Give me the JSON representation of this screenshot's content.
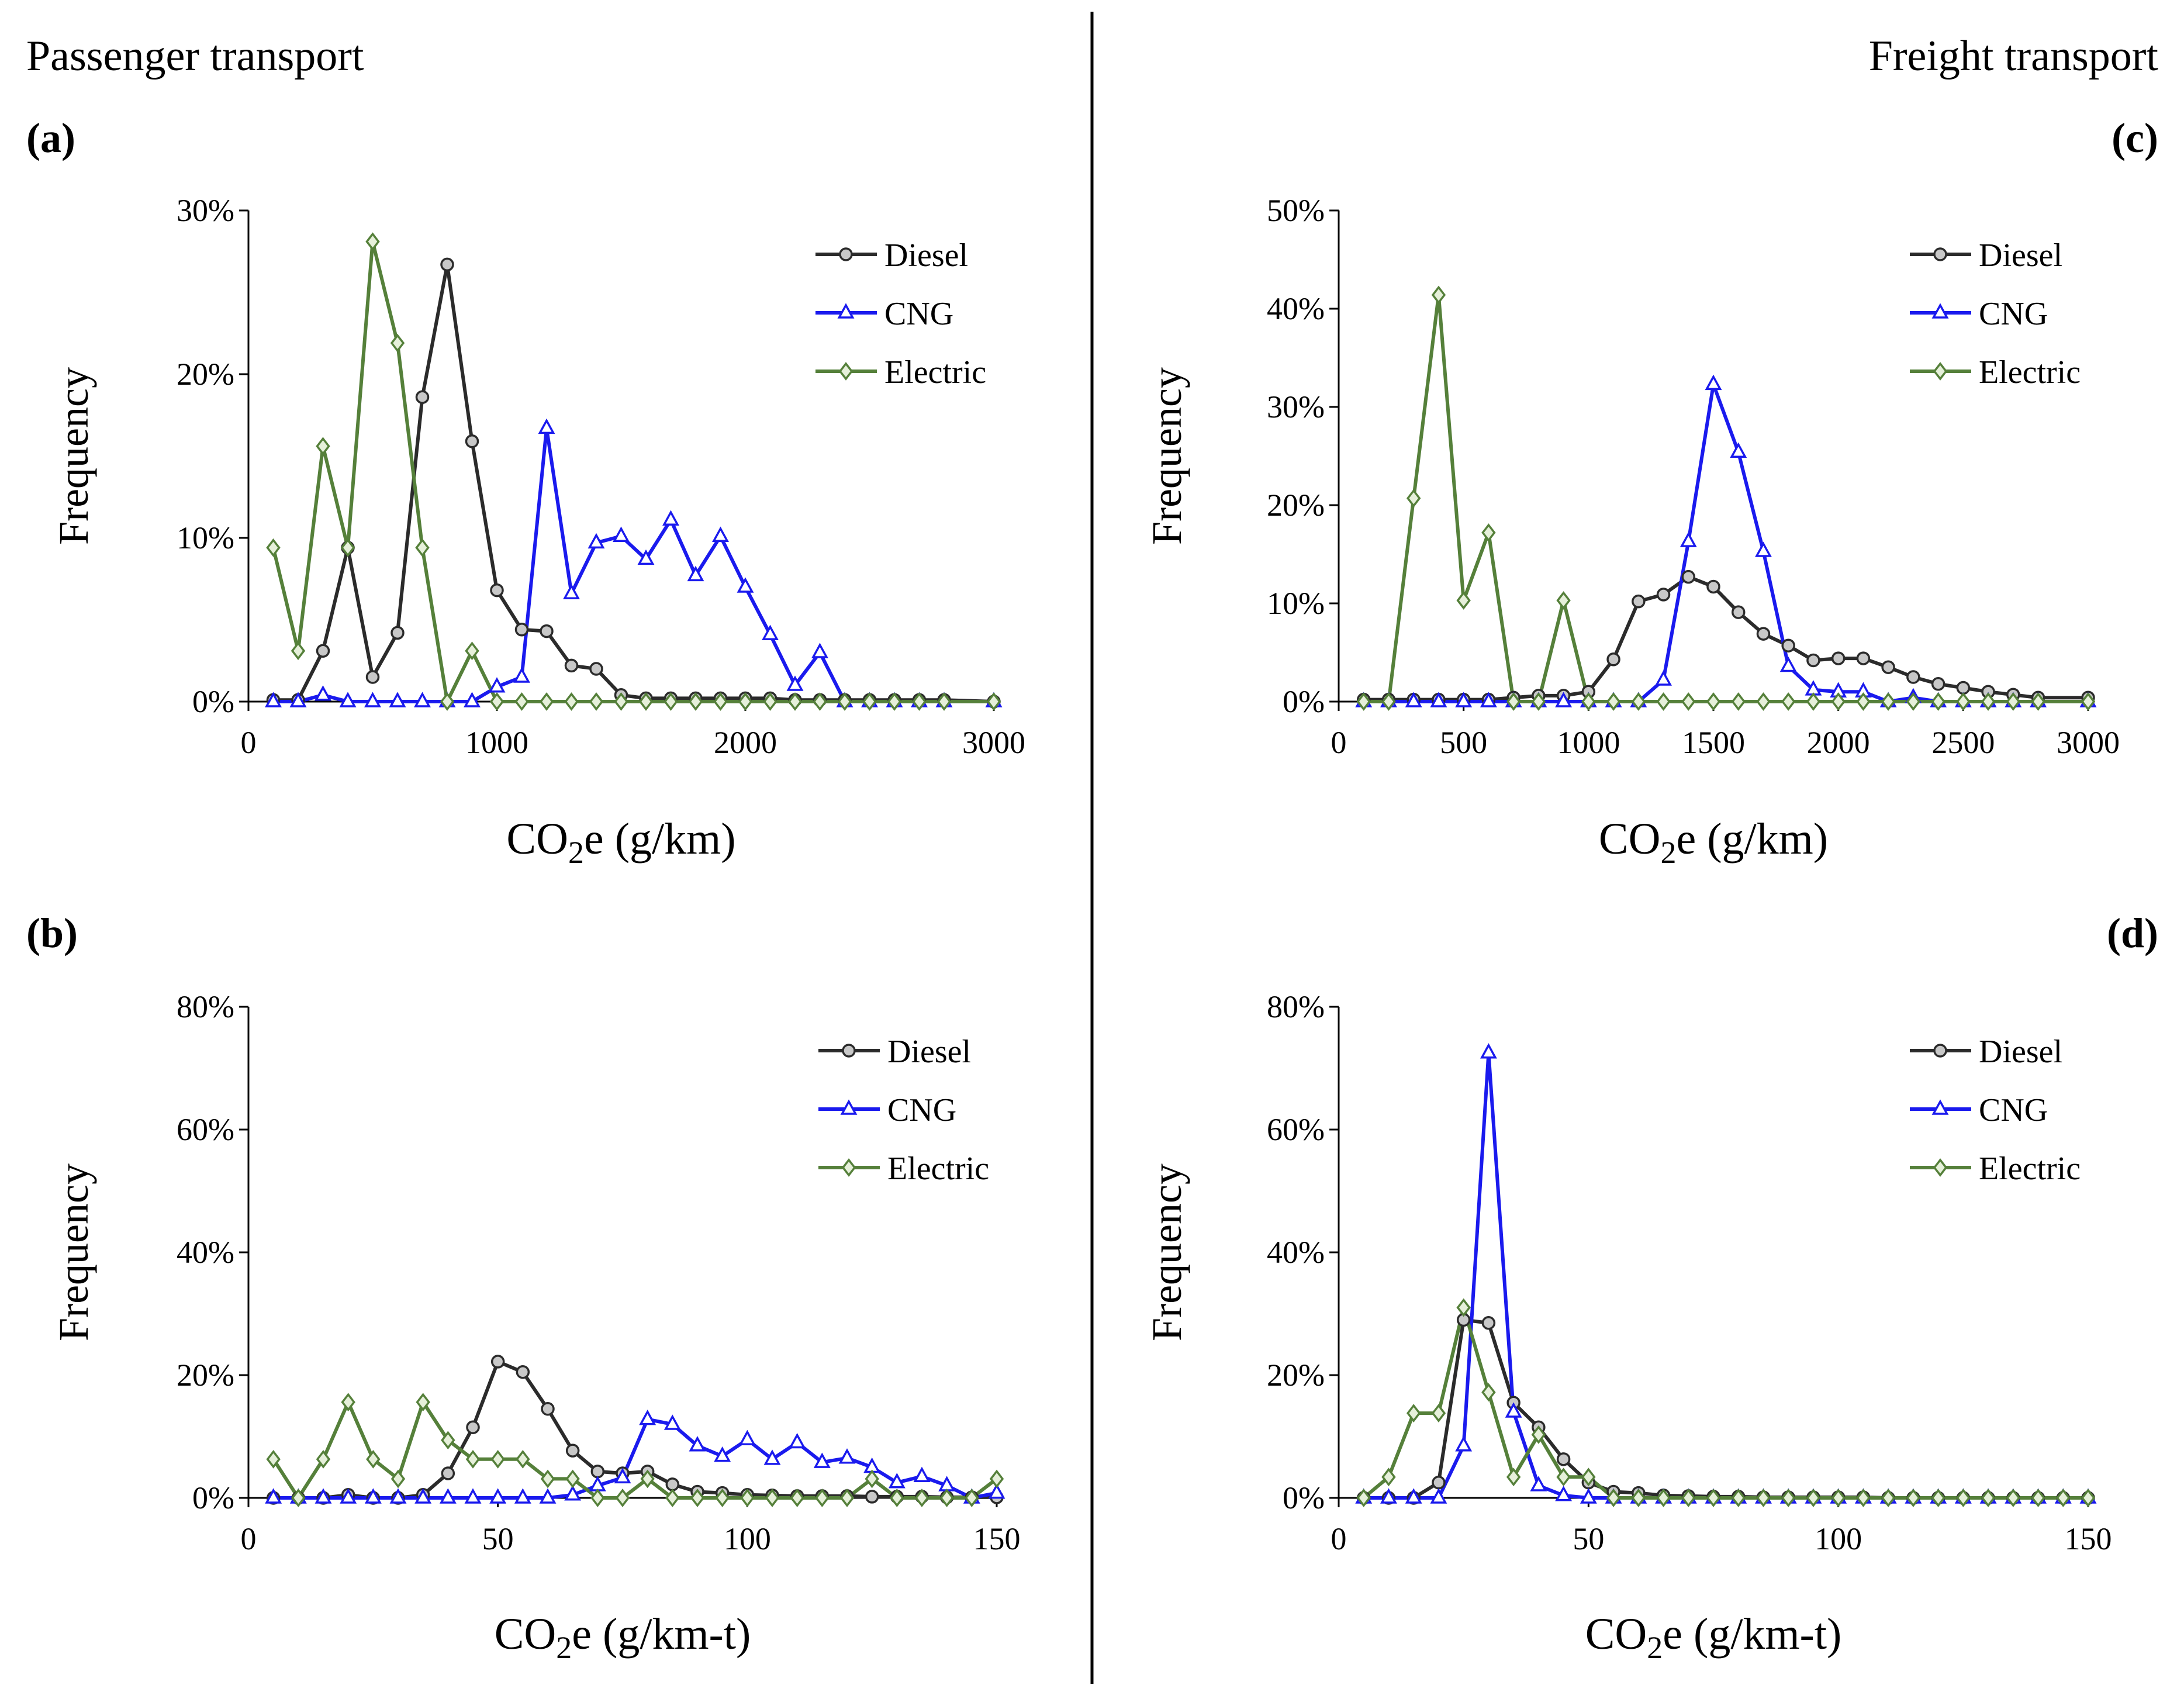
{
  "figure": {
    "sections": {
      "left": "Passenger transport",
      "right": "Freight transport"
    }
  },
  "colors": {
    "diesel": "#2b2b2b",
    "cng": "#1a1aee",
    "electric": "#55803a",
    "diesel_marker": "#c8c8c8",
    "electric_marker": "#e6f0da",
    "cng_marker": "#ffffff"
  },
  "chart_data": [
    {
      "id": "a",
      "panel_label": "(a)",
      "type": "line",
      "title": "Passenger transport",
      "xlabel_main": "CO",
      "xlabel_sub": "2",
      "xlabel_rest": "e (g/km)",
      "ylabel": "Frequency",
      "xlim": [
        0,
        3000
      ],
      "ylim": [
        0,
        0.3
      ],
      "xticks": [
        0,
        1000,
        2000,
        3000
      ],
      "xtick_labels": [
        "0",
        "1000",
        "2000",
        "3000"
      ],
      "yticks": [
        0,
        0.1,
        0.2,
        0.3
      ],
      "ytick_labels": [
        "0%",
        "10%",
        "20%",
        "30%"
      ],
      "legend": [
        "Diesel",
        "CNG",
        "Electric"
      ],
      "legend_position": "top-right",
      "series": [
        {
          "name": "Diesel",
          "x": [
            100,
            200,
            300,
            400,
            500,
            600,
            700,
            800,
            900,
            1000,
            1100,
            1200,
            1300,
            1400,
            1500,
            1600,
            1700,
            1800,
            1900,
            2000,
            2100,
            2200,
            2300,
            2400,
            2500,
            2600,
            2700,
            2800,
            3000
          ],
          "values": [
            0.001,
            0.001,
            0.031,
            0.094,
            0.015,
            0.042,
            0.186,
            0.267,
            0.159,
            0.068,
            0.044,
            0.043,
            0.022,
            0.02,
            0.004,
            0.002,
            0.002,
            0.002,
            0.002,
            0.002,
            0.002,
            0.001,
            0.001,
            0.001,
            0.001,
            0.001,
            0.001,
            0.001,
            0.0
          ]
        },
        {
          "name": "CNG",
          "x": [
            100,
            200,
            300,
            400,
            500,
            600,
            700,
            800,
            900,
            1000,
            1100,
            1200,
            1300,
            1400,
            1500,
            1600,
            1700,
            1800,
            1900,
            2000,
            2100,
            2200,
            2300,
            2400,
            2500,
            2600,
            2700,
            2800,
            3000
          ],
          "values": [
            0.0,
            0.0,
            0.004,
            0.0,
            0.0,
            0.0,
            0.0,
            0.0,
            0.0,
            0.009,
            0.015,
            0.167,
            0.066,
            0.097,
            0.101,
            0.087,
            0.111,
            0.077,
            0.101,
            0.07,
            0.041,
            0.01,
            0.03,
            0.0,
            0.0,
            0.0,
            0.0,
            0.0,
            0.0
          ]
        },
        {
          "name": "Electric",
          "x": [
            100,
            200,
            300,
            400,
            500,
            600,
            700,
            800,
            900,
            1000,
            1100,
            1200,
            1300,
            1400,
            1500,
            1600,
            1700,
            1800,
            1900,
            2000,
            2100,
            2200,
            2300,
            2400,
            2500,
            2600,
            2700,
            2800,
            3000
          ],
          "values": [
            0.094,
            0.031,
            0.156,
            0.094,
            0.281,
            0.219,
            0.094,
            0.0,
            0.031,
            0.0,
            0.0,
            0.0,
            0.0,
            0.0,
            0.0,
            0.0,
            0.0,
            0.0,
            0.0,
            0.0,
            0.0,
            0.0,
            0.0,
            0.0,
            0.0,
            0.0,
            0.0,
            0.0,
            0.0
          ]
        }
      ]
    },
    {
      "id": "c",
      "panel_label": "(c)",
      "type": "line",
      "title": "Freight transport",
      "xlabel_main": "CO",
      "xlabel_sub": "2",
      "xlabel_rest": "e (g/km)",
      "ylabel": "Frequency",
      "xlim": [
        0,
        3000
      ],
      "ylim": [
        0,
        0.5
      ],
      "xticks": [
        0,
        500,
        1000,
        1500,
        2000,
        2500,
        3000
      ],
      "xtick_labels": [
        "0",
        "500",
        "1000",
        "1500",
        "2000",
        "2500",
        "3000"
      ],
      "yticks": [
        0,
        0.1,
        0.2,
        0.3,
        0.4,
        0.5
      ],
      "ytick_labels": [
        "0%",
        "10%",
        "20%",
        "30%",
        "40%",
        "50%"
      ],
      "legend": [
        "Diesel",
        "CNG",
        "Electric"
      ],
      "legend_position": "top-right",
      "series": [
        {
          "name": "Diesel",
          "x": [
            100,
            200,
            300,
            400,
            500,
            600,
            700,
            800,
            900,
            1000,
            1100,
            1200,
            1300,
            1400,
            1500,
            1600,
            1700,
            1800,
            1900,
            2000,
            2100,
            2200,
            2300,
            2400,
            2500,
            2600,
            2700,
            2800,
            3000
          ],
          "values": [
            0.002,
            0.002,
            0.002,
            0.002,
            0.002,
            0.002,
            0.004,
            0.006,
            0.006,
            0.01,
            0.043,
            0.102,
            0.109,
            0.127,
            0.117,
            0.091,
            0.069,
            0.057,
            0.042,
            0.044,
            0.044,
            0.035,
            0.025,
            0.018,
            0.014,
            0.01,
            0.007,
            0.004,
            0.004
          ]
        },
        {
          "name": "CNG",
          "x": [
            100,
            200,
            300,
            400,
            500,
            600,
            700,
            800,
            900,
            1000,
            1100,
            1200,
            1300,
            1400,
            1500,
            1600,
            1700,
            1800,
            1900,
            2000,
            2100,
            2200,
            2300,
            2400,
            2500,
            2600,
            2700,
            2800,
            3000
          ],
          "values": [
            0.0,
            0.0,
            0.0,
            0.0,
            0.0,
            0.0,
            0.0,
            0.0,
            0.0,
            0.0,
            0.0,
            0.0,
            0.022,
            0.163,
            0.323,
            0.254,
            0.153,
            0.036,
            0.012,
            0.01,
            0.01,
            0.0,
            0.004,
            0.0,
            0.0,
            0.0,
            0.0,
            0.0,
            0.0
          ]
        },
        {
          "name": "Electric",
          "x": [
            100,
            200,
            300,
            400,
            500,
            600,
            700,
            800,
            900,
            1000,
            1100,
            1200,
            1300,
            1400,
            1500,
            1600,
            1700,
            1800,
            1900,
            2000,
            2100,
            2200,
            2300,
            2400,
            2500,
            2600,
            2700,
            2800,
            3000
          ],
          "values": [
            0.0,
            0.0,
            0.207,
            0.414,
            0.103,
            0.172,
            0.0,
            0.0,
            0.103,
            0.0,
            0.0,
            0.0,
            0.0,
            0.0,
            0.0,
            0.0,
            0.0,
            0.0,
            0.0,
            0.0,
            0.0,
            0.0,
            0.0,
            0.0,
            0.0,
            0.0,
            0.0,
            0.0,
            0.0
          ]
        }
      ]
    },
    {
      "id": "b",
      "panel_label": "(b)",
      "type": "line",
      "title": "Passenger transport",
      "xlabel_main": "CO",
      "xlabel_sub": "2",
      "xlabel_rest": "e (g/km-t)",
      "ylabel": "Frequency",
      "xlim": [
        0,
        150
      ],
      "ylim": [
        0,
        0.8
      ],
      "xticks": [
        0,
        50,
        100,
        150
      ],
      "xtick_labels": [
        "0",
        "50",
        "100",
        "150"
      ],
      "yticks": [
        0,
        0.2,
        0.4,
        0.6,
        0.8
      ],
      "ytick_labels": [
        "0%",
        "20%",
        "40%",
        "60%",
        "80%"
      ],
      "legend": [
        "Diesel",
        "CNG",
        "Electric"
      ],
      "legend_position": "top-right",
      "series": [
        {
          "name": "Diesel",
          "x": [
            5,
            10,
            15,
            20,
            25,
            30,
            35,
            40,
            45,
            50,
            55,
            60,
            65,
            70,
            75,
            80,
            85,
            90,
            95,
            100,
            105,
            110,
            115,
            120,
            125,
            130,
            135,
            140,
            145,
            150
          ],
          "values": [
            0.0,
            0.0,
            0.0,
            0.005,
            0.0,
            0.0,
            0.005,
            0.04,
            0.115,
            0.222,
            0.205,
            0.145,
            0.077,
            0.043,
            0.04,
            0.043,
            0.022,
            0.01,
            0.008,
            0.005,
            0.004,
            0.003,
            0.003,
            0.003,
            0.002,
            0.002,
            0.002,
            0.001,
            0.001,
            0.001
          ]
        },
        {
          "name": "CNG",
          "x": [
            5,
            10,
            15,
            20,
            25,
            30,
            35,
            40,
            45,
            50,
            55,
            60,
            65,
            70,
            75,
            80,
            85,
            90,
            95,
            100,
            105,
            110,
            115,
            120,
            125,
            130,
            135,
            140,
            145,
            150
          ],
          "values": [
            0.0,
            0.0,
            0.0,
            0.0,
            0.0,
            0.0,
            0.0,
            0.0,
            0.0,
            0.0,
            0.0,
            0.0,
            0.005,
            0.02,
            0.033,
            0.128,
            0.12,
            0.085,
            0.068,
            0.095,
            0.063,
            0.09,
            0.058,
            0.065,
            0.05,
            0.025,
            0.035,
            0.02,
            0.0,
            0.008
          ]
        },
        {
          "name": "Electric",
          "x": [
            5,
            10,
            15,
            20,
            25,
            30,
            35,
            40,
            45,
            50,
            55,
            60,
            65,
            70,
            75,
            80,
            85,
            90,
            95,
            100,
            105,
            110,
            115,
            120,
            125,
            130,
            135,
            140,
            145,
            150
          ],
          "values": [
            0.063,
            0.0,
            0.063,
            0.156,
            0.063,
            0.031,
            0.156,
            0.094,
            0.063,
            0.063,
            0.063,
            0.031,
            0.031,
            0.0,
            0.0,
            0.031,
            0.0,
            0.0,
            0.0,
            0.0,
            0.0,
            0.0,
            0.0,
            0.0,
            0.031,
            0.0,
            0.0,
            0.0,
            0.0,
            0.031
          ]
        }
      ]
    },
    {
      "id": "d",
      "panel_label": "(d)",
      "type": "line",
      "title": "Freight transport",
      "xlabel_main": "CO",
      "xlabel_sub": "2",
      "xlabel_rest": "e (g/km-t)",
      "ylabel": "Frequency",
      "xlim": [
        0,
        150
      ],
      "ylim": [
        0,
        0.8
      ],
      "xticks": [
        0,
        50,
        100,
        150
      ],
      "xtick_labels": [
        "0",
        "50",
        "100",
        "150"
      ],
      "yticks": [
        0,
        0.2,
        0.4,
        0.6,
        0.8
      ],
      "ytick_labels": [
        "0%",
        "20%",
        "40%",
        "60%",
        "80%"
      ],
      "legend": [
        "Diesel",
        "CNG",
        "Electric"
      ],
      "legend_position": "top-right",
      "series": [
        {
          "name": "Diesel",
          "x": [
            5,
            10,
            15,
            20,
            25,
            30,
            35,
            40,
            45,
            50,
            55,
            60,
            65,
            70,
            75,
            80,
            85,
            90,
            95,
            100,
            105,
            110,
            115,
            120,
            125,
            130,
            135,
            140,
            145,
            150
          ],
          "values": [
            0.0,
            0.0,
            0.0,
            0.025,
            0.29,
            0.285,
            0.155,
            0.115,
            0.063,
            0.025,
            0.01,
            0.008,
            0.004,
            0.003,
            0.002,
            0.002,
            0.001,
            0.001,
            0.001,
            0.001,
            0.001,
            0.0,
            0.0,
            0.0,
            0.0,
            0.0,
            0.0,
            0.0,
            0.0,
            0.0
          ]
        },
        {
          "name": "CNG",
          "x": [
            5,
            10,
            15,
            20,
            25,
            30,
            35,
            40,
            45,
            50,
            55,
            60,
            65,
            70,
            75,
            80,
            85,
            90,
            95,
            100,
            105,
            110,
            115,
            120,
            125,
            130,
            135,
            140,
            145,
            150
          ],
          "values": [
            0.0,
            0.0,
            0.0,
            0.0,
            0.085,
            0.725,
            0.14,
            0.02,
            0.004,
            0.0,
            0.0,
            0.0,
            0.0,
            0.0,
            0.0,
            0.0,
            0.0,
            0.0,
            0.0,
            0.0,
            0.0,
            0.0,
            0.0,
            0.0,
            0.0,
            0.0,
            0.0,
            0.0,
            0.0,
            0.0
          ]
        },
        {
          "name": "Electric",
          "x": [
            5,
            10,
            15,
            20,
            25,
            30,
            35,
            40,
            45,
            50,
            55,
            60,
            65,
            70,
            75,
            80,
            85,
            90,
            95,
            100,
            105,
            110,
            115,
            120,
            125,
            130,
            135,
            140,
            145,
            150
          ],
          "values": [
            0.0,
            0.034,
            0.138,
            0.138,
            0.31,
            0.172,
            0.034,
            0.103,
            0.034,
            0.034,
            0.0,
            0.0,
            0.0,
            0.0,
            0.0,
            0.0,
            0.0,
            0.0,
            0.0,
            0.0,
            0.0,
            0.0,
            0.0,
            0.0,
            0.0,
            0.0,
            0.0,
            0.0,
            0.0,
            0.0
          ]
        }
      ]
    }
  ]
}
